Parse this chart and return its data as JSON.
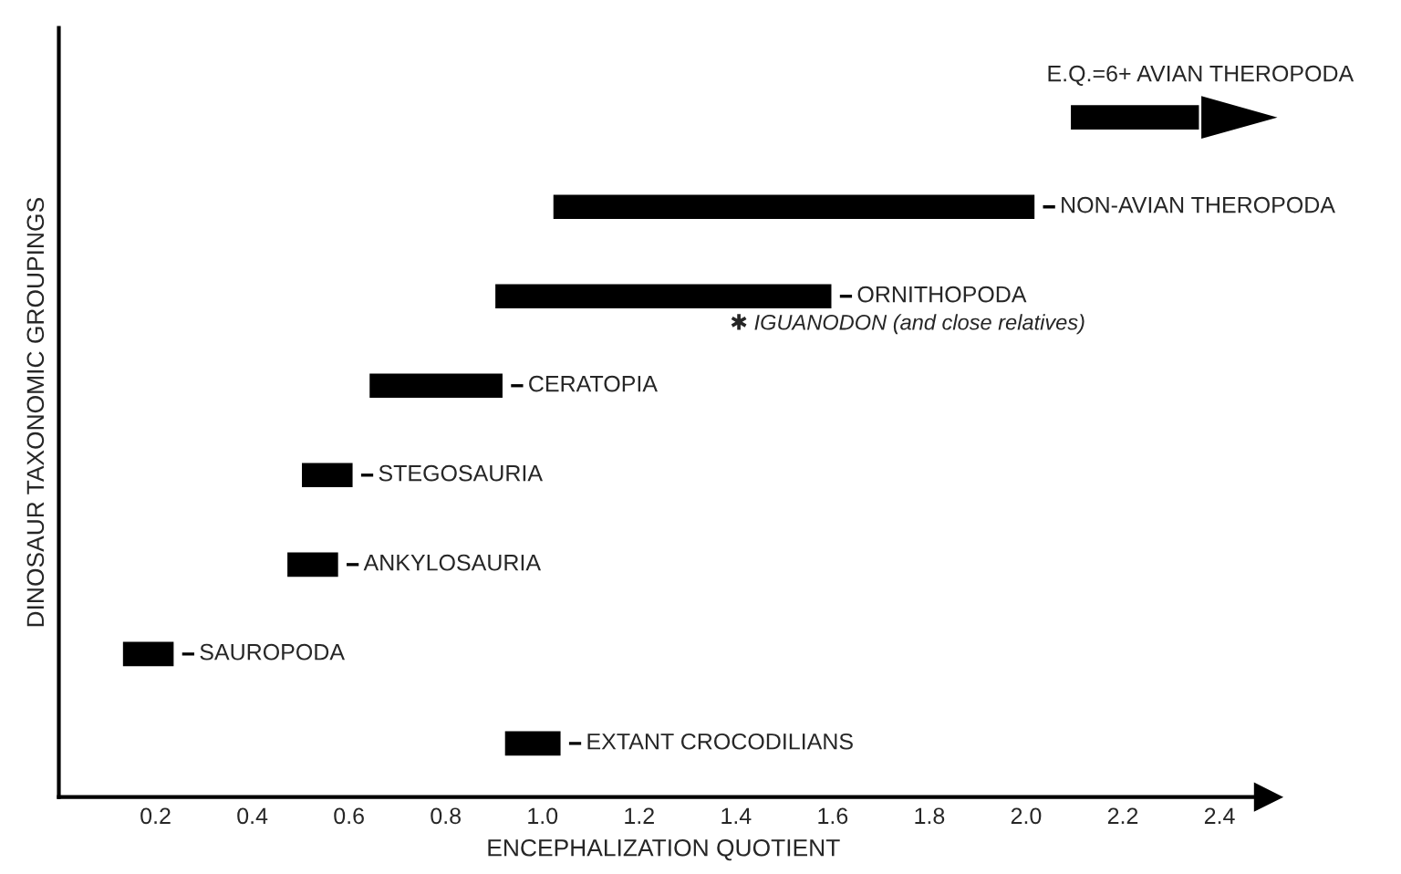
{
  "chart_data": {
    "type": "bar",
    "orientation": "horizontal",
    "categories": [
      "E.Q.=6+ AVIAN THEROPODA",
      "NON-AVIAN THEROPODA",
      "ORNITHOPODA",
      "CERATOPIA",
      "STEGOSAURIA",
      "ANKYLOSAURIA",
      "SAUROPODA",
      "EXTANT CROCODILIANS"
    ],
    "base": [
      2.09,
      1.02,
      0.9,
      0.64,
      0.5,
      0.47,
      0.13,
      0.92
    ],
    "values": [
      0.27,
      1.0,
      0.7,
      0.28,
      0.11,
      0.11,
      0.11,
      0.12
    ],
    "color": "#000000",
    "xlabel": "ENCEPHALIZATION QUOTIENT",
    "ylabel": "DINOSAUR TAXONOMIC GROUPINGS",
    "xlim": [
      0,
      2.5
    ],
    "xticks": [
      0.2,
      0.4,
      0.6,
      0.8,
      {
        "value": 1.0,
        "label": "1.0"
      },
      1.2,
      1.4,
      1.6,
      1.8,
      {
        "value": 2.0,
        "label": "2.0"
      },
      2.2,
      2.4
    ],
    "annotations": [
      "✱ IGUANODON (and close relatives)"
    ],
    "tick_labels": "x",
    "grid": false,
    "legend": false
  }
}
